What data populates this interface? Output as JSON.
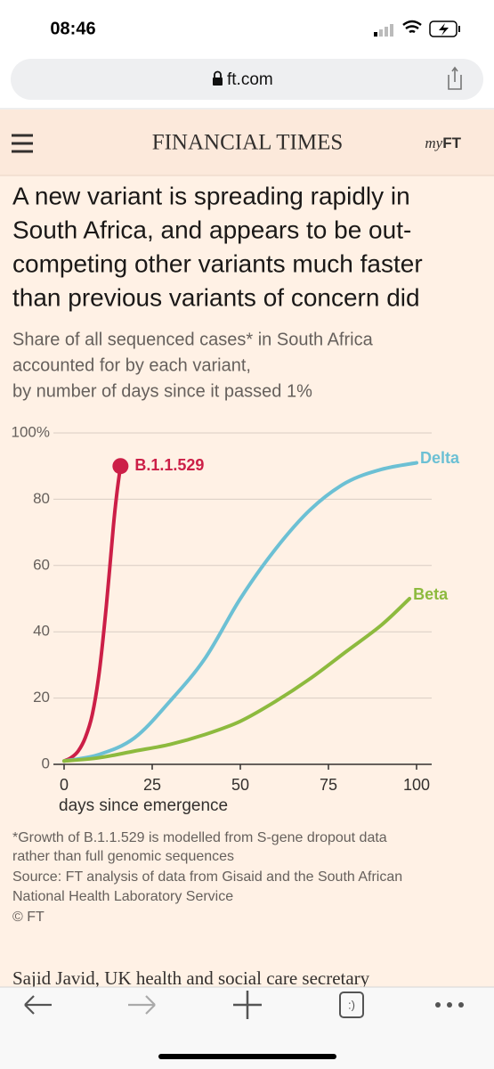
{
  "status_bar": {
    "time": "08:46"
  },
  "browser": {
    "url": "ft.com",
    "tab_label": ":)"
  },
  "header": {
    "masthead": "FINANCIAL TIMES",
    "my_ft_prefix": "my",
    "my_ft_suffix": "FT"
  },
  "chart_data": {
    "type": "line",
    "title": [
      "A new variant is spreading rapidly in",
      "South Africa, and appears to be out-",
      "competing other variants much faster",
      "than previous variants of concern did"
    ],
    "subtitle": [
      "Share of all sequenced cases* in South Africa",
      "accounted for by each variant,",
      "by number of days since it passed 1%"
    ],
    "x_label": "days since emergence",
    "xlim": [
      0,
      100
    ],
    "xticks": [
      0,
      25,
      50,
      75,
      100
    ],
    "ylim": [
      0,
      100
    ],
    "yticks": [
      0,
      20,
      40,
      60,
      80,
      {
        "value": 100,
        "label": "100%"
      }
    ],
    "grid": true,
    "series": [
      {
        "name": "B.1.1.529",
        "color": "#cc1f47",
        "end_marker": true,
        "x": [
          0,
          2,
          4,
          6,
          8,
          10,
          12,
          14,
          15,
          16
        ],
        "values": [
          1,
          2,
          4,
          8,
          15,
          28,
          48,
          72,
          82,
          90
        ]
      },
      {
        "name": "Delta",
        "color": "#6cc0d4",
        "x": [
          0,
          10,
          20,
          30,
          40,
          50,
          60,
          70,
          80,
          90,
          100
        ],
        "values": [
          1,
          3,
          8,
          19,
          32,
          50,
          65,
          77,
          85,
          89,
          91
        ]
      },
      {
        "name": "Beta",
        "color": "#8dba3e",
        "x": [
          0,
          10,
          20,
          30,
          40,
          50,
          60,
          70,
          80,
          90,
          98
        ],
        "values": [
          1,
          2,
          4,
          6,
          9,
          13,
          19,
          26,
          34,
          42,
          50
        ]
      }
    ],
    "notes": [
      "*Growth of B.1.1.529 is modelled from S-gene dropout data",
      "rather than full genomic sequences",
      "Source: FT analysis of data from Gisaid and the South African",
      "National Health Laboratory Service",
      "© FT"
    ]
  },
  "article": {
    "teaser": "Sajid Javid, UK health and social care secretary"
  }
}
